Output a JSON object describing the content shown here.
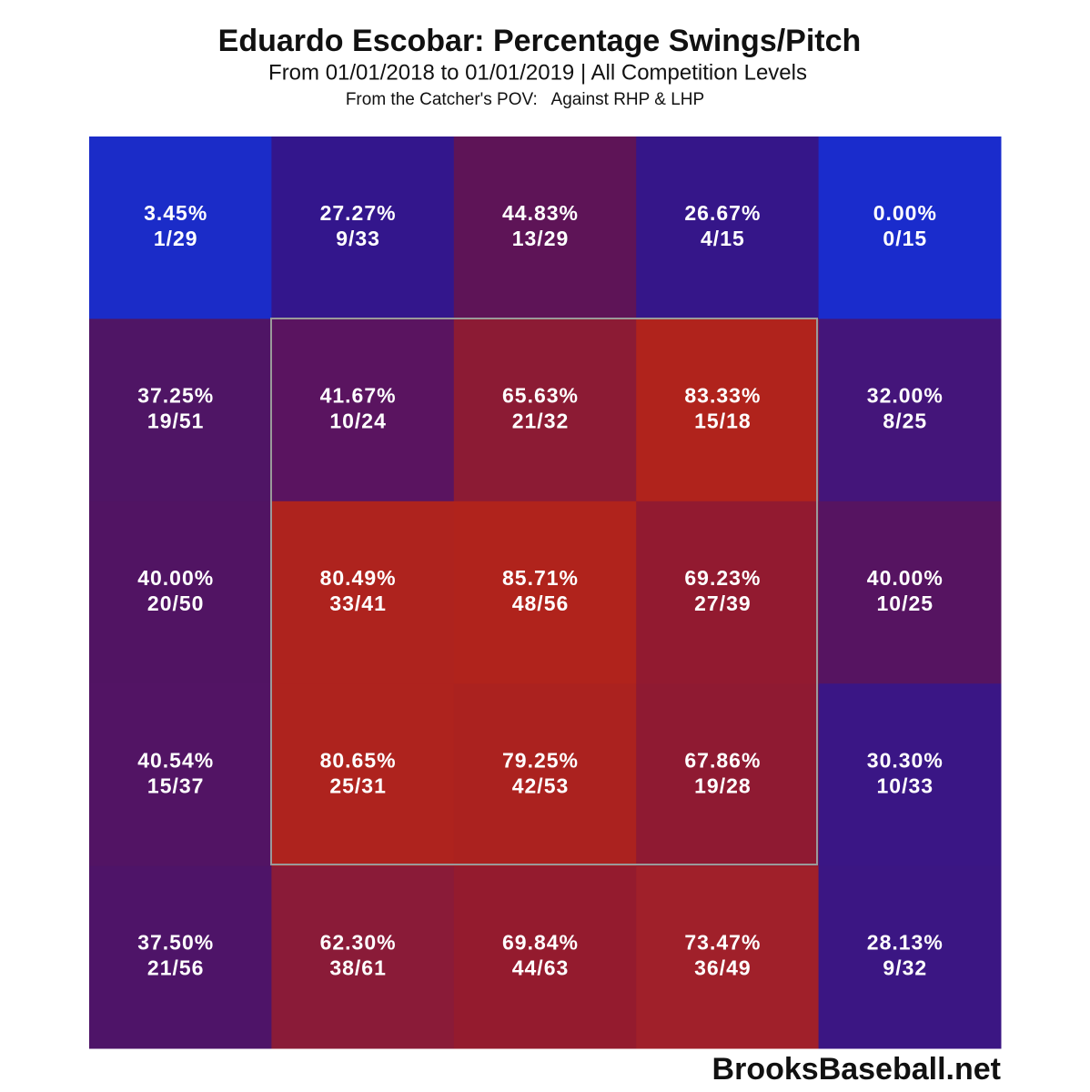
{
  "chart_data": {
    "type": "heatmap",
    "title": "Eduardo Escobar: Percentage Swings/Pitch",
    "subtitle": "From 01/01/2018 to 01/01/2019 | All Competition Levels",
    "note": "From the Catcher's POV:   Against RHP & LHP",
    "source": "BrooksBaseball.net",
    "values": [
      [
        3.45,
        27.27,
        44.83,
        26.67,
        0
      ],
      [
        37.25,
        41.67,
        65.63,
        83.33,
        32
      ],
      [
        40,
        80.49,
        85.71,
        69.23,
        40
      ],
      [
        40.54,
        80.65,
        79.25,
        67.86,
        30.3
      ],
      [
        37.5,
        62.3,
        69.84,
        73.47,
        28.13
      ]
    ],
    "value_labels": [
      [
        "3.45%",
        "27.27%",
        "44.83%",
        "26.67%",
        "0.00%"
      ],
      [
        "37.25%",
        "41.67%",
        "65.63%",
        "83.33%",
        "32.00%"
      ],
      [
        "40.00%",
        "80.49%",
        "85.71%",
        "69.23%",
        "40.00%"
      ],
      [
        "40.54%",
        "80.65%",
        "79.25%",
        "67.86%",
        "30.30%"
      ],
      [
        "37.50%",
        "62.30%",
        "69.84%",
        "73.47%",
        "28.13%"
      ]
    ],
    "counts": [
      [
        "1/29",
        "9/33",
        "13/29",
        "4/15",
        "0/15"
      ],
      [
        "19/51",
        "10/24",
        "21/32",
        "15/18",
        "8/25"
      ],
      [
        "20/50",
        "33/41",
        "48/56",
        "27/39",
        "10/25"
      ],
      [
        "15/37",
        "25/31",
        "42/53",
        "19/28",
        "10/33"
      ],
      [
        "21/56",
        "38/61",
        "44/63",
        "36/49",
        "9/32"
      ]
    ],
    "colors": [
      [
        "#1b2cc8",
        "#33168c",
        "#5e1457",
        "#351689",
        "#1a2ccc"
      ],
      [
        "#4f1565",
        "#5a1460",
        "#8c1b34",
        "#b0231c",
        "#44157a"
      ],
      [
        "#511463",
        "#ae231e",
        "#b0231c",
        "#921a30",
        "#561461"
      ],
      [
        "#521464",
        "#ae231e",
        "#ab221f",
        "#8f1a32",
        "#3a1685"
      ],
      [
        "#4e1468",
        "#8a1b38",
        "#941b2e",
        "#a0202a",
        "#3b1683"
      ]
    ]
  }
}
